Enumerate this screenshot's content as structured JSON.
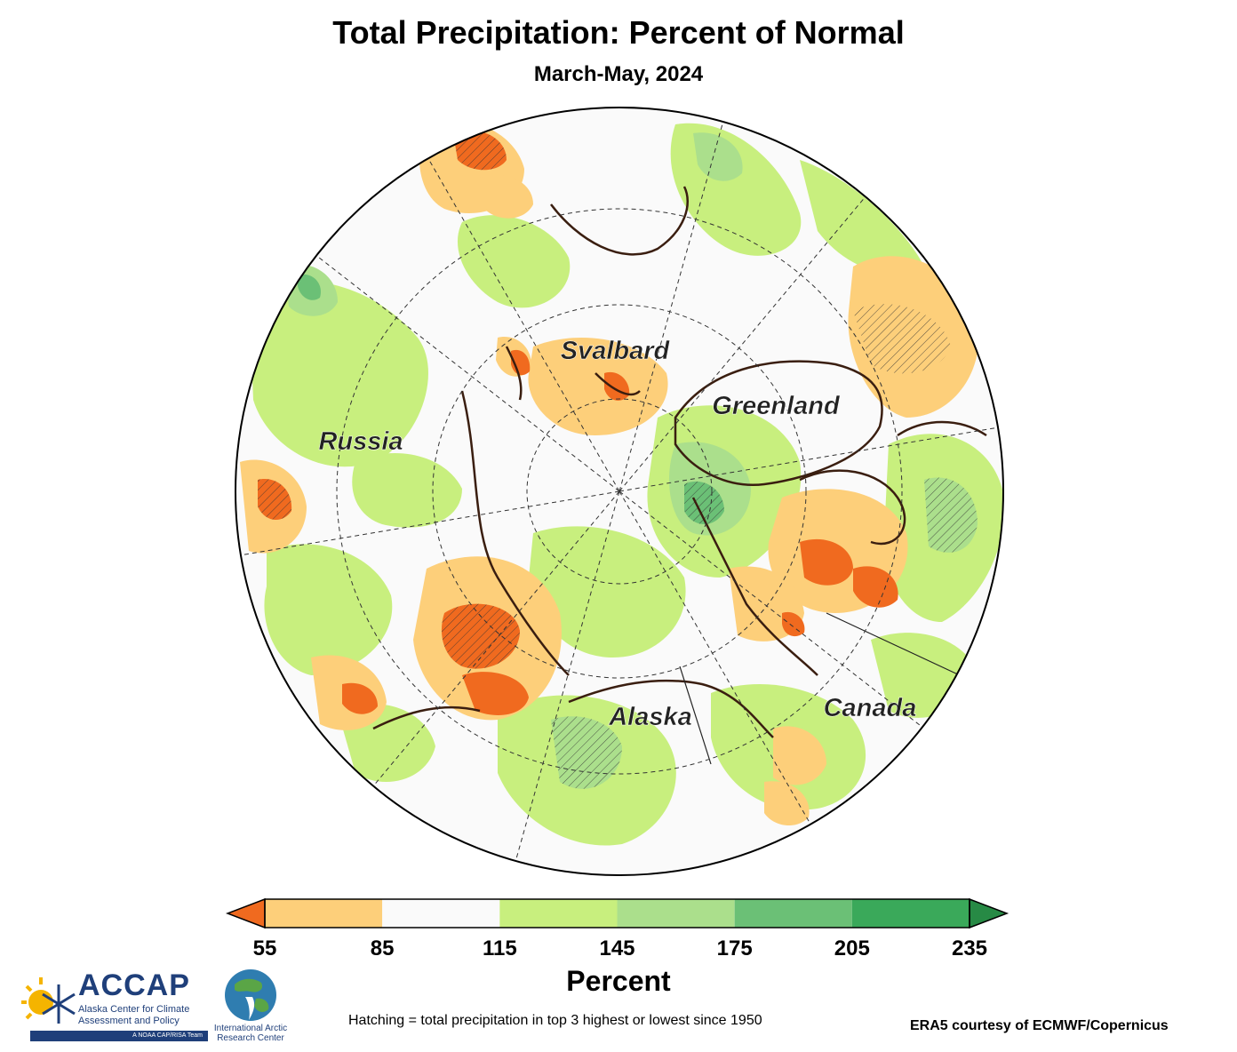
{
  "title": "Total Precipitation: Percent of Normal",
  "subtitle": "March-May, 2024",
  "map_labels": {
    "svalbard": "Svalbard",
    "greenland": "Greenland",
    "russia": "Russia",
    "alaska": "Alaska",
    "canada": "Canada"
  },
  "legend": {
    "ticks": [
      "55",
      "85",
      "115",
      "145",
      "175",
      "205",
      "235"
    ],
    "colors": [
      "#fdcf7a",
      "#fafafa",
      "#c8ef7e",
      "#abdf8c",
      "#6bc076",
      "#3aa95a"
    ],
    "under_color": "#f06a1f",
    "over_color": "#278a45",
    "units": "Percent"
  },
  "note": "Hatching = total precipitation in top 3 highest or lowest since 1950",
  "credit": "ERA5 courtesy of ECMWF/Copernicus",
  "logos": {
    "accap_word": "ACCAP",
    "accap_line1": "Alaska Center for Climate",
    "accap_line2": "Assessment and Policy",
    "accap_tag": "A NOAA CAP/RISA Team",
    "iarc_line1": "International Arctic",
    "iarc_line2": "Research Center"
  }
}
